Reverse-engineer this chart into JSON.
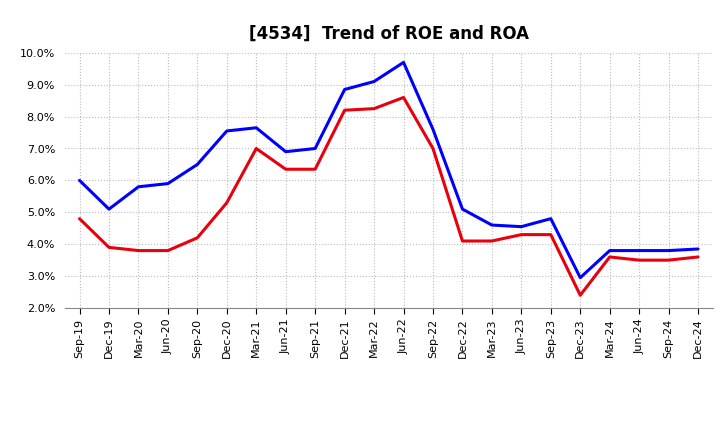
{
  "title": "[4534]  Trend of ROE and ROA",
  "x_labels": [
    "Sep-19",
    "Dec-19",
    "Mar-20",
    "Jun-20",
    "Sep-20",
    "Dec-20",
    "Mar-21",
    "Jun-21",
    "Sep-21",
    "Dec-21",
    "Mar-22",
    "Jun-22",
    "Sep-22",
    "Dec-22",
    "Mar-23",
    "Jun-23",
    "Sep-23",
    "Dec-23",
    "Mar-24",
    "Jun-24",
    "Sep-24",
    "Dec-24"
  ],
  "roe": [
    4.8,
    3.9,
    3.8,
    3.8,
    4.2,
    5.3,
    7.0,
    6.35,
    6.35,
    8.2,
    8.25,
    8.6,
    7.0,
    4.1,
    4.1,
    4.3,
    4.3,
    2.4,
    3.6,
    3.5,
    3.5,
    3.6
  ],
  "roa": [
    6.0,
    5.1,
    5.8,
    5.9,
    6.5,
    7.55,
    7.65,
    6.9,
    7.0,
    8.85,
    9.1,
    9.7,
    7.6,
    5.1,
    4.6,
    4.55,
    4.8,
    2.95,
    3.8,
    3.8,
    3.8,
    3.85
  ],
  "roe_color": "#e8000d",
  "roa_color": "#0000ff",
  "ylim": [
    2.0,
    10.0
  ],
  "yticks": [
    2.0,
    3.0,
    4.0,
    5.0,
    6.0,
    7.0,
    8.0,
    9.0,
    10.0
  ],
  "background_color": "#ffffff",
  "grid_color": "#bbbbbb",
  "title_fontsize": 12,
  "axis_fontsize": 8,
  "legend_fontsize": 10,
  "linewidth": 2.2
}
